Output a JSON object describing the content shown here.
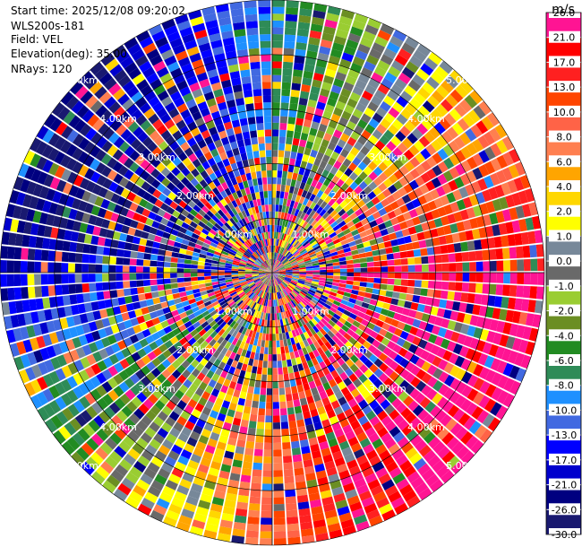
{
  "header": {
    "start_time": "Start time: 2025/12/08 09:20:02",
    "instrument": "WLS200s-181",
    "field": "Field: VEL",
    "elevation": "Elevation(deg): 35.00",
    "nrays": "NRays: 120"
  },
  "chart_data": {
    "type": "heatmap",
    "projection": "polar-ppi",
    "field": "VEL",
    "unit": "m/s",
    "n_rays": 120,
    "max_range_km": 5.0,
    "range_rings_km": [
      1,
      2,
      3,
      4,
      5
    ],
    "range_ring_labels": [
      "1.00km",
      "2.00km",
      "3.00km",
      "4.00km",
      "5.00km"
    ],
    "colorbar": {
      "ticks": [
        "26.0",
        "21.0",
        "17.0",
        "13.0",
        "10.0",
        "8.0",
        "6.0",
        "4.0",
        "2.0",
        "1.0",
        "0.0",
        "-1.0",
        "-2.0",
        "-4.0",
        "-6.0",
        "-8.0",
        "-10.0",
        "-13.0",
        "-17.0",
        "-21.0",
        "-26.0",
        "-30.0"
      ],
      "colors": [
        "#ff1493",
        "#ff1493",
        "#ff0000",
        "#ff2020",
        "#ff4500",
        "#ff6347",
        "#ff7f50",
        "#ffa500",
        "#ffd700",
        "#ffff00",
        "#778899",
        "#696969",
        "#9acd32",
        "#6b8e23",
        "#228b22",
        "#2e8b57",
        "#1e90ff",
        "#4169e1",
        "#0000ff",
        "#0000cd",
        "#000080",
        "#191970"
      ]
    },
    "pattern": "far range: positive velocities (pink/red) toward the east and south-east, negative velocities (navy/blue) toward the west and north-west; near range noisy"
  }
}
